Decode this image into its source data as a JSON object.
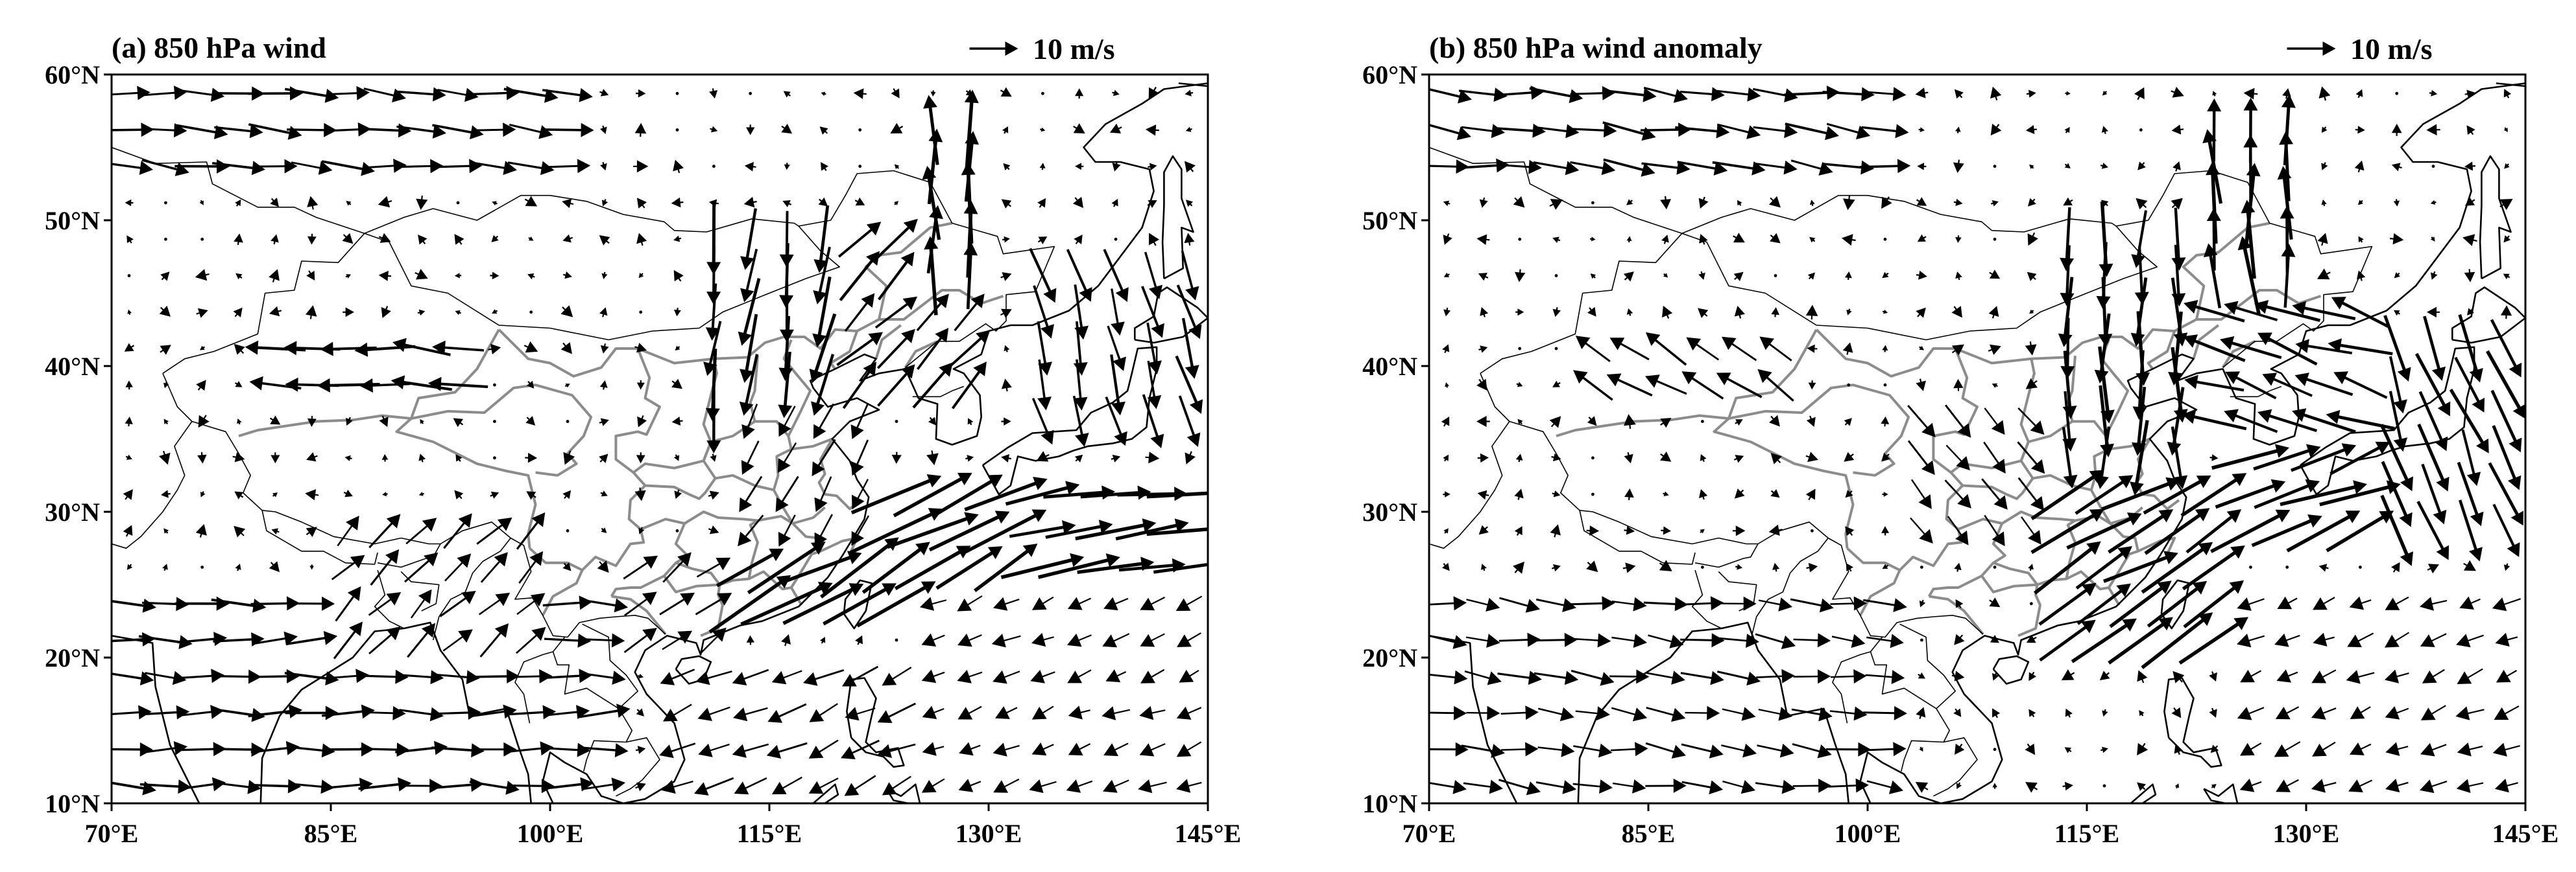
{
  "figure": {
    "panels": [
      {
        "id": "a",
        "title": "(a) 850 hPa wind",
        "reference_vector": {
          "label": "10 m/s",
          "magnitude_ms": 10
        },
        "field": "wind"
      },
      {
        "id": "b",
        "title": "(b) 850 hPa wind anomaly",
        "reference_vector": {
          "label": "10 m/s",
          "magnitude_ms": 10
        },
        "field": "anomaly"
      }
    ],
    "x_ticks": [
      "70°E",
      "85°E",
      "100°E",
      "115°E",
      "130°E",
      "145°E"
    ],
    "y_ticks": [
      "60°N",
      "50°N",
      "40°N",
      "30°N",
      "20°N",
      "10°N"
    ],
    "lon_range": [
      70,
      145
    ],
    "lat_range": [
      10,
      60
    ],
    "colors": {
      "coastline": "#000000",
      "province_boundaries": "#8c8c8c",
      "vectors": "#000000"
    }
  },
  "chart_data": [
    {
      "type": "vector-field",
      "title": "(a) 850 hPa wind",
      "variable": "850 hPa wind",
      "units": "m/s",
      "reference_vector_ms": 10,
      "xlim": [
        70,
        145
      ],
      "ylim": [
        10,
        60
      ],
      "x_ticks": [
        70,
        85,
        100,
        115,
        130,
        145
      ],
      "y_ticks": [
        10,
        20,
        30,
        40,
        50,
        60
      ],
      "grid_spacing_deg": 2.5,
      "regimes": [
        {
          "lon": [
            70,
            102
          ],
          "lat": [
            52,
            60
          ],
          "u": 10,
          "v": -1
        },
        {
          "lon": [
            70,
            105
          ],
          "lat": [
            9,
            24
          ],
          "u": 10,
          "v": 0
        },
        {
          "lon": [
            85,
            100
          ],
          "lat": [
            21,
            30
          ],
          "u": 6,
          "v": 6
        },
        {
          "lon": [
            105,
            112
          ],
          "lat": [
            20,
            28
          ],
          "u": 6,
          "v": 5
        },
        {
          "lon": [
            112,
            133
          ],
          "lat": [
            23,
            33
          ],
          "u": 16,
          "v": 9
        },
        {
          "lon": [
            132,
            145
          ],
          "lat": [
            26,
            33
          ],
          "u": 16,
          "v": 2
        },
        {
          "lon": [
            111,
            120
          ],
          "lat": [
            34,
            50
          ],
          "u": -2,
          "v": -13
        },
        {
          "lon": [
            119,
            129
          ],
          "lat": [
            37,
            50
          ],
          "u": 8,
          "v": 8
        },
        {
          "lon": [
            124,
            130
          ],
          "lat": [
            46,
            57
          ],
          "u": 0,
          "v": 15
        },
        {
          "lon": [
            107,
            125
          ],
          "lat": [
            9,
            20
          ],
          "u": -7,
          "v": -3
        },
        {
          "lon": [
            133,
            145
          ],
          "lat": [
            34,
            48
          ],
          "u": 3,
          "v": -11
        },
        {
          "lon": [
            80,
            95
          ],
          "lat": [
            38,
            42
          ],
          "u": -12,
          "v": 1
        },
        {
          "lon": [
            125,
            145
          ],
          "lat": [
            9,
            25
          ],
          "u": -5,
          "v": -2
        },
        {
          "lon": [
            112,
            123
          ],
          "lat": [
            28,
            38
          ],
          "u": -4,
          "v": -7
        }
      ]
    },
    {
      "type": "vector-field",
      "title": "(b) 850 hPa wind anomaly",
      "variable": "850 hPa wind anomaly",
      "units": "m/s",
      "reference_vector_ms": 10,
      "xlim": [
        70,
        145
      ],
      "ylim": [
        10,
        60
      ],
      "x_ticks": [
        70,
        85,
        100,
        115,
        130,
        145
      ],
      "y_ticks": [
        10,
        20,
        30,
        40,
        50,
        60
      ],
      "grid_spacing_deg": 2.5,
      "regimes": [
        {
          "lon": [
            70,
            102
          ],
          "lat": [
            52,
            60
          ],
          "u": 10,
          "v": -1
        },
        {
          "lon": [
            70,
            102
          ],
          "lat": [
            9,
            24
          ],
          "u": 8,
          "v": -1
        },
        {
          "lon": [
            113,
            124
          ],
          "lat": [
            21,
            33
          ],
          "u": 14,
          "v": 8
        },
        {
          "lon": [
            124,
            140
          ],
          "lat": [
            28,
            35
          ],
          "u": 15,
          "v": 6
        },
        {
          "lon": [
            112,
            122
          ],
          "lat": [
            33,
            50
          ],
          "u": 0,
          "v": -14
        },
        {
          "lon": [
            122,
            131
          ],
          "lat": [
            44,
            57
          ],
          "u": -1,
          "v": 15
        },
        {
          "lon": [
            122,
            135
          ],
          "lat": [
            36,
            44
          ],
          "u": -12,
          "v": 4
        },
        {
          "lon": [
            134,
            145
          ],
          "lat": [
            28,
            42
          ],
          "u": 5,
          "v": -13
        },
        {
          "lon": [
            80,
            95
          ],
          "lat": [
            38,
            43
          ],
          "u": -8,
          "v": 5
        },
        {
          "lon": [
            103,
            113
          ],
          "lat": [
            27,
            37
          ],
          "u": 5,
          "v": -6
        },
        {
          "lon": [
            124,
            145
          ],
          "lat": [
            9,
            26
          ],
          "u": -5,
          "v": -2
        }
      ]
    }
  ]
}
